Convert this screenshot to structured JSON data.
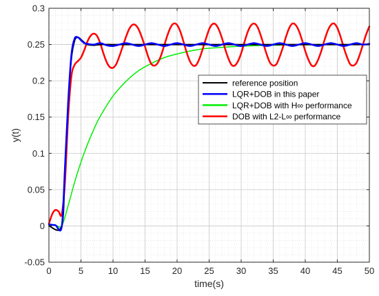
{
  "chart_data": {
    "type": "line",
    "xlabel": "time(s)",
    "ylabel": "y(t)",
    "xlim": [
      0,
      50
    ],
    "ylim": [
      -0.05,
      0.3
    ],
    "xticks": [
      0,
      5,
      10,
      15,
      20,
      25,
      30,
      35,
      40,
      45,
      50
    ],
    "yticks": [
      -0.05,
      0,
      0.05,
      0.1,
      0.15,
      0.2,
      0.25,
      0.3
    ],
    "xtick_labels": [
      "0",
      "5",
      "10",
      "15",
      "20",
      "25",
      "30",
      "35",
      "40",
      "45",
      "50"
    ],
    "ytick_labels": [
      "-0.05",
      "0",
      "0.05",
      "0.1",
      "0.15",
      "0.2",
      "0.25",
      "0.3"
    ],
    "grid": true,
    "minor_grid": true,
    "legend_position": "right",
    "series": [
      {
        "name": "reference position",
        "color": "#000000",
        "x": [
          0,
          2,
          2.5,
          3,
          3.5,
          4,
          4.5,
          5,
          5.5,
          6,
          7,
          8,
          10,
          15,
          20,
          30,
          40,
          50
        ],
        "y": [
          0,
          0,
          0.08,
          0.17,
          0.23,
          0.255,
          0.26,
          0.257,
          0.253,
          0.25,
          0.249,
          0.25,
          0.25,
          0.25,
          0.25,
          0.25,
          0.25,
          0.25
        ]
      },
      {
        "name": "LQR+DOB in this paper",
        "color": "#0000ff",
        "x": [
          0,
          1,
          2,
          2.5,
          3,
          3.5,
          4,
          4.5,
          5,
          5.5,
          6,
          7,
          8,
          9,
          10,
          11,
          12,
          13,
          14,
          15,
          16,
          17,
          18,
          19,
          20,
          21,
          22,
          23,
          24,
          25,
          26,
          27,
          28,
          29,
          30,
          31,
          32,
          33,
          34,
          35,
          36,
          37,
          38,
          39,
          40,
          41,
          42,
          43,
          44,
          45,
          46,
          47,
          48,
          49,
          50
        ],
        "y": [
          0.002,
          0.001,
          -0.001,
          0.08,
          0.17,
          0.235,
          0.258,
          0.26,
          0.256,
          0.252,
          0.251,
          0.25,
          0.252,
          0.249,
          0.248,
          0.25,
          0.252,
          0.25,
          0.248,
          0.25,
          0.252,
          0.25,
          0.248,
          0.25,
          0.252,
          0.25,
          0.248,
          0.25,
          0.252,
          0.25,
          0.248,
          0.25,
          0.252,
          0.25,
          0.248,
          0.25,
          0.252,
          0.25,
          0.248,
          0.25,
          0.252,
          0.25,
          0.248,
          0.25,
          0.252,
          0.25,
          0.248,
          0.25,
          0.252,
          0.25,
          0.248,
          0.25,
          0.252,
          0.25,
          0.251
        ]
      },
      {
        "name": "LQR+DOB with H∞ performance",
        "color": "#00ee00",
        "x": [
          0,
          1,
          2,
          3,
          4,
          5,
          6,
          7,
          8,
          10,
          12,
          14,
          16,
          18,
          20,
          22,
          24,
          26,
          28,
          30,
          32,
          34,
          36,
          38,
          40,
          45,
          50
        ],
        "y": [
          0.001,
          0.001,
          0,
          0.028,
          0.06,
          0.088,
          0.112,
          0.133,
          0.151,
          0.179,
          0.199,
          0.214,
          0.224,
          0.232,
          0.237,
          0.241,
          0.244,
          0.2455,
          0.2468,
          0.2477,
          0.2484,
          0.2489,
          0.2492,
          0.2495,
          0.2496,
          0.2499,
          0.25
        ]
      },
      {
        "name": "DOB with L2-L∞ performance",
        "color": "#ff0000",
        "x": [
          0,
          0.5,
          1,
          1.5,
          2,
          2.5,
          3,
          3.5,
          4,
          4.5,
          5,
          5.5,
          6,
          6.5,
          7,
          7.5,
          8,
          8.5,
          9,
          9.5,
          10,
          10.5,
          11,
          11.5,
          12,
          12.5,
          13,
          13.5,
          14,
          14.5,
          15,
          15.5,
          16,
          16.5,
          17,
          17.5,
          18,
          18.5,
          19,
          19.5,
          20,
          20.5,
          21,
          21.5,
          22,
          22.5,
          23,
          23.5,
          24,
          24.5,
          25,
          25.5,
          26,
          26.5,
          27,
          27.5,
          28,
          28.5,
          29,
          29.5,
          30,
          30.5,
          31,
          31.5,
          32,
          32.5,
          33,
          33.5,
          34,
          34.5,
          35,
          35.5,
          36,
          36.5,
          37,
          37.5,
          38,
          38.5,
          39,
          39.5,
          40,
          40.5,
          41,
          41.5,
          42,
          42.5,
          43,
          43.5,
          44,
          44.5,
          45,
          45.5,
          46,
          46.5,
          47,
          47.5,
          48,
          48.5,
          49,
          49.5,
          50
        ],
        "y": [
          0.003,
          0.016,
          0.022,
          0.02,
          0.016,
          0.06,
          0.15,
          0.206,
          0.222,
          0.227,
          0.232,
          0.242,
          0.254,
          0.262,
          0.265,
          0.262,
          0.252,
          0.238,
          0.226,
          0.219,
          0.218,
          0.223,
          0.234,
          0.247,
          0.26,
          0.271,
          0.277,
          0.277,
          0.271,
          0.26,
          0.247,
          0.233,
          0.223,
          0.221,
          0.225,
          0.235,
          0.249,
          0.263,
          0.274,
          0.279,
          0.277,
          0.268,
          0.254,
          0.239,
          0.227,
          0.221,
          0.222,
          0.231,
          0.244,
          0.258,
          0.271,
          0.278,
          0.278,
          0.271,
          0.259,
          0.244,
          0.231,
          0.222,
          0.221,
          0.227,
          0.238,
          0.253,
          0.267,
          0.276,
          0.279,
          0.275,
          0.264,
          0.25,
          0.236,
          0.225,
          0.221,
          0.223,
          0.233,
          0.246,
          0.261,
          0.273,
          0.279,
          0.277,
          0.269,
          0.256,
          0.241,
          0.229,
          0.221,
          0.221,
          0.229,
          0.241,
          0.256,
          0.269,
          0.277,
          0.279,
          0.273,
          0.261,
          0.246,
          0.233,
          0.223,
          0.221,
          0.225,
          0.236,
          0.25,
          0.264,
          0.275
        ]
      }
    ]
  }
}
